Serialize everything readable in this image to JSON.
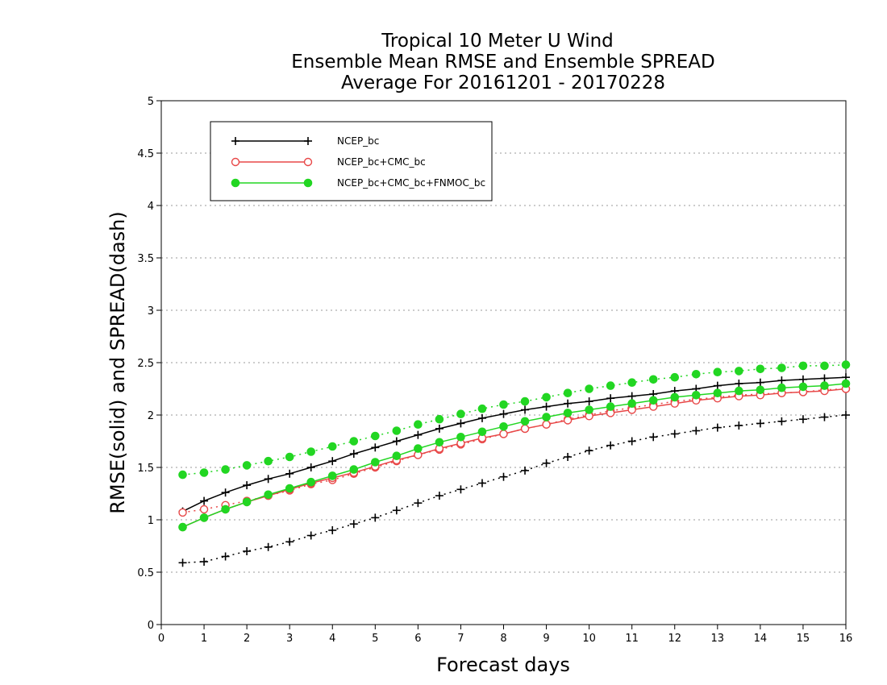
{
  "chart_data": {
    "type": "line",
    "title": [
      "Tropical 10 Meter U Wind",
      "Ensemble Mean RMSE and Ensemble SPREAD",
      "Average For 20161201 - 20170228"
    ],
    "xlabel": "Forecast days",
    "ylabel": "RMSE(solid) and SPREAD(dash)",
    "xlim": [
      0,
      16
    ],
    "ylim": [
      0,
      5
    ],
    "xticks": [
      "0",
      "1",
      "2",
      "3",
      "4",
      "5",
      "6",
      "7",
      "8",
      "9",
      "10",
      "11",
      "12",
      "13",
      "14",
      "15",
      "16"
    ],
    "yticks": [
      "0",
      "0.5",
      "1",
      "1.5",
      "2",
      "2.5",
      "3",
      "3.5",
      "4",
      "4.5",
      "5"
    ],
    "grid": "horizontal dotted",
    "legend_position": "top-left",
    "x": [
      0.5,
      1,
      1.5,
      2,
      2.5,
      3,
      3.5,
      4,
      4.5,
      5,
      5.5,
      6,
      6.5,
      7,
      7.5,
      8,
      8.5,
      9,
      9.5,
      10,
      10.5,
      11,
      11.5,
      12,
      12.5,
      13,
      13.5,
      14,
      14.5,
      15,
      15.5,
      16
    ],
    "series": [
      {
        "name": "NCEP_bc",
        "color": "#000000",
        "marker": "plus",
        "rmse": [
          1.08,
          1.18,
          1.26,
          1.33,
          1.39,
          1.44,
          1.5,
          1.56,
          1.63,
          1.69,
          1.75,
          1.81,
          1.87,
          1.92,
          1.97,
          2.01,
          2.05,
          2.08,
          2.11,
          2.13,
          2.16,
          2.18,
          2.2,
          2.23,
          2.25,
          2.28,
          2.3,
          2.31,
          2.33,
          2.34,
          2.35,
          2.36
        ],
        "spread": [
          0.59,
          0.6,
          0.65,
          0.7,
          0.74,
          0.79,
          0.85,
          0.9,
          0.96,
          1.02,
          1.09,
          1.16,
          1.23,
          1.29,
          1.35,
          1.41,
          1.47,
          1.54,
          1.6,
          1.66,
          1.71,
          1.75,
          1.79,
          1.82,
          1.85,
          1.88,
          1.9,
          1.92,
          1.94,
          1.96,
          1.98,
          2.0
        ]
      },
      {
        "name": "NCEP_bc+CMC_bc",
        "color": "#e84848",
        "marker": "open-circle",
        "rmse": [
          0.93,
          1.02,
          1.1,
          1.17,
          1.23,
          1.29,
          1.35,
          1.4,
          1.45,
          1.51,
          1.57,
          1.62,
          1.68,
          1.73,
          1.78,
          1.82,
          1.87,
          1.91,
          1.95,
          1.99,
          2.02,
          2.05,
          2.08,
          2.11,
          2.14,
          2.16,
          2.18,
          2.19,
          2.21,
          2.22,
          2.23,
          2.25
        ],
        "spread": [
          1.07,
          1.1,
          1.14,
          1.18,
          1.23,
          1.28,
          1.34,
          1.38,
          1.44,
          1.5,
          1.56,
          1.62,
          1.67,
          1.72,
          1.77,
          1.82,
          1.87,
          1.91,
          1.96,
          2.0,
          2.04,
          2.07,
          2.1,
          2.13,
          2.15,
          2.17,
          2.19,
          2.2,
          2.21,
          2.22,
          2.24,
          2.25
        ]
      },
      {
        "name": "NCEP_bc+CMC_bc+FNMOC_bc",
        "color": "#22d622",
        "marker": "filled-circle",
        "rmse": [
          0.93,
          1.02,
          1.1,
          1.17,
          1.24,
          1.3,
          1.36,
          1.42,
          1.48,
          1.55,
          1.61,
          1.68,
          1.74,
          1.79,
          1.84,
          1.89,
          1.94,
          1.98,
          2.02,
          2.05,
          2.08,
          2.11,
          2.14,
          2.17,
          2.19,
          2.21,
          2.23,
          2.24,
          2.26,
          2.27,
          2.28,
          2.3
        ],
        "spread": [
          1.43,
          1.45,
          1.48,
          1.52,
          1.56,
          1.6,
          1.65,
          1.7,
          1.75,
          1.8,
          1.85,
          1.91,
          1.96,
          2.01,
          2.06,
          2.1,
          2.13,
          2.17,
          2.21,
          2.25,
          2.28,
          2.31,
          2.34,
          2.36,
          2.39,
          2.41,
          2.42,
          2.44,
          2.45,
          2.47,
          2.47,
          2.48
        ]
      }
    ]
  }
}
